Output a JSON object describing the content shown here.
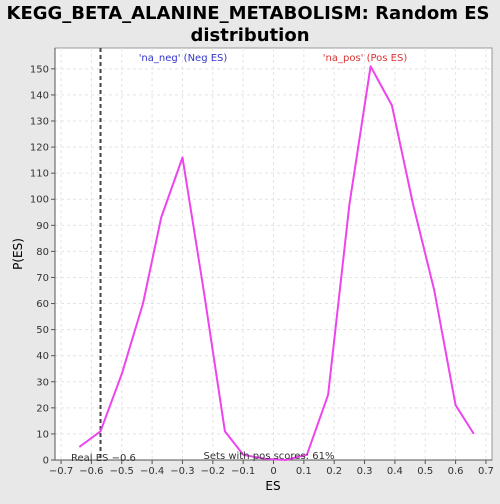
{
  "chart_data": {
    "type": "line",
    "title_lines": [
      "KEGG_BETA_ALANINE_METABOLISM: Random ES",
      "distribution"
    ],
    "xlabel": "ES",
    "ylabel": "P(ES)",
    "xlim": [
      -0.72,
      0.72
    ],
    "ylim": [
      0,
      158
    ],
    "xticks": [
      -0.7,
      -0.6,
      -0.5,
      -0.4,
      -0.3,
      -0.2,
      -0.1,
      0.0,
      0.1,
      0.2,
      0.3,
      0.4,
      0.5,
      0.6,
      0.7
    ],
    "xtick_labels": [
      "−0.7",
      "−0.6",
      "−0.5",
      "−0.4",
      "−0.3",
      "−0.2",
      "−0.1",
      "0",
      "0.1",
      "0.2",
      "0.3",
      "0.4",
      "0.5",
      "0.6",
      "0.7"
    ],
    "yticks": [
      0,
      10,
      20,
      30,
      40,
      50,
      60,
      70,
      80,
      90,
      100,
      110,
      120,
      130,
      140,
      150
    ],
    "grid": true,
    "series": [
      {
        "color": "#ee44ee",
        "x": [
          -0.64,
          -0.57,
          -0.5,
          -0.43,
          -0.37,
          -0.3,
          -0.23,
          -0.16,
          -0.1,
          -0.03,
          0.04,
          0.11,
          0.18,
          0.25,
          0.32,
          0.39,
          0.46,
          0.53,
          0.6,
          0.66
        ],
        "y": [
          5,
          11,
          33,
          60,
          93,
          116,
          65,
          11,
          2,
          0.5,
          0,
          2,
          25,
          98,
          151,
          136,
          98,
          65,
          21,
          10
        ]
      }
    ],
    "real_es": -0.57,
    "annotations": {
      "neg_label": "'na_neg' (Neg ES)",
      "neg_color": "#3333cc",
      "pos_label": "'na_pos' (Pos ES)",
      "pos_color": "#dd3333",
      "real_es_label": "Real ES −0.6",
      "sets_label": "Sets with pos scores: 61%"
    }
  }
}
